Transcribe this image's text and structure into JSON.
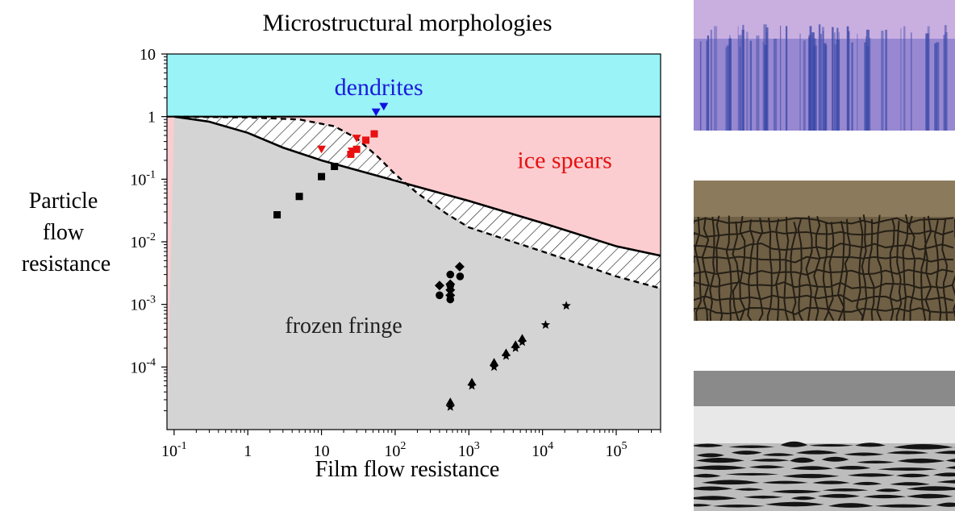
{
  "chart_data": {
    "type": "scatter",
    "title": "Microstructural morphologies",
    "xlabel": "Film flow resistance",
    "ylabel": [
      "Particle",
      "flow",
      "resistance"
    ],
    "x_scale": "log",
    "y_scale": "log",
    "xlim": [
      0.08,
      400000
    ],
    "ylim": [
      1e-05,
      10
    ],
    "x_ticks": [
      {
        "v": 0.1,
        "b": "10",
        "e": "-1"
      },
      {
        "v": 1,
        "b": "1",
        "e": ""
      },
      {
        "v": 10,
        "b": "10",
        "e": ""
      },
      {
        "v": 100,
        "b": "10",
        "e": "2"
      },
      {
        "v": 1000,
        "b": "10",
        "e": "3"
      },
      {
        "v": 10000,
        "b": "10",
        "e": "4"
      },
      {
        "v": 100000,
        "b": "10",
        "e": "5"
      }
    ],
    "y_ticks": [
      {
        "v": 10,
        "b": "10",
        "e": ""
      },
      {
        "v": 1,
        "b": "1",
        "e": ""
      },
      {
        "v": 0.1,
        "b": "10",
        "e": "-1"
      },
      {
        "v": 0.01,
        "b": "10",
        "e": "-2"
      },
      {
        "v": 0.001,
        "b": "10",
        "e": "-3"
      },
      {
        "v": 0.0001,
        "b": "10",
        "e": "-4"
      }
    ],
    "regions": [
      {
        "label": "dendrites",
        "color": "#99f3f7",
        "label_color": "#1a1adc",
        "label_at": [
          60,
          2.2
        ]
      },
      {
        "label": "ice spears",
        "color": "#fbcdd0",
        "label_color": "#e81010",
        "label_at": [
          20000,
          0.15
        ]
      },
      {
        "label": "frozen fringe",
        "color": "#d4d4d4",
        "label_color": "#222222",
        "label_at": [
          20,
          0.00035
        ]
      }
    ],
    "solid_boundary": [
      [
        0.1,
        1
      ],
      [
        0.3,
        0.83
      ],
      [
        1,
        0.55
      ],
      [
        3,
        0.32
      ],
      [
        10,
        0.2
      ],
      [
        30,
        0.14
      ],
      [
        100,
        0.095
      ],
      [
        1000,
        0.045
      ],
      [
        10000,
        0.02
      ],
      [
        100000,
        0.0085
      ],
      [
        400000,
        0.006
      ]
    ],
    "dashed_boundary": [
      [
        0.1,
        1
      ],
      [
        1,
        0.97
      ],
      [
        5,
        0.9
      ],
      [
        15,
        0.7
      ],
      [
        30,
        0.45
      ],
      [
        60,
        0.22
      ],
      [
        100,
        0.12
      ],
      [
        200,
        0.06
      ],
      [
        500,
        0.028
      ],
      [
        1000,
        0.017
      ],
      [
        10000,
        0.007
      ],
      [
        100000,
        0.0028
      ],
      [
        400000,
        0.0018
      ]
    ],
    "series": [
      {
        "marker": "triangle-down",
        "color": "#1010e0",
        "points": [
          [
            55,
            1.18
          ],
          [
            70,
            1.45
          ]
        ]
      },
      {
        "marker": "triangle-down",
        "color": "#e81010",
        "points": [
          [
            10,
            0.3
          ],
          [
            26,
            0.28
          ],
          [
            30,
            0.45
          ]
        ]
      },
      {
        "marker": "square",
        "color": "#e81010",
        "points": [
          [
            25,
            0.25
          ],
          [
            30,
            0.3
          ],
          [
            40,
            0.42
          ],
          [
            52,
            0.53
          ]
        ]
      },
      {
        "marker": "square",
        "color": "#000000",
        "points": [
          [
            2.5,
            0.027
          ],
          [
            5,
            0.053
          ],
          [
            10,
            0.11
          ],
          [
            15,
            0.16
          ]
        ]
      },
      {
        "marker": "diamond",
        "color": "#000000",
        "points": [
          [
            400,
            0.002
          ],
          [
            560,
            0.0021
          ],
          [
            750,
            0.004
          ],
          [
            560,
            0.0017
          ],
          [
            560,
            0.0014
          ]
        ]
      },
      {
        "marker": "circle",
        "color": "#000000",
        "points": [
          [
            400,
            0.0014
          ],
          [
            560,
            0.0012
          ],
          [
            560,
            0.002
          ],
          [
            560,
            0.003
          ],
          [
            760,
            0.0028
          ]
        ]
      },
      {
        "marker": "triangle-up",
        "color": "#000000",
        "points": [
          [
            560,
            2.8e-05
          ],
          [
            1100,
            5.8e-05
          ],
          [
            2200,
            0.00012
          ],
          [
            3200,
            0.00017
          ],
          [
            4300,
            0.00023
          ],
          [
            5300,
            0.00029
          ]
        ]
      },
      {
        "marker": "star",
        "color": "#000000",
        "points": [
          [
            560,
            2.3e-05
          ],
          [
            1100,
            5e-05
          ],
          [
            2200,
            0.0001
          ],
          [
            3200,
            0.00015
          ],
          [
            4300,
            0.0002
          ],
          [
            5300,
            0.00025
          ],
          [
            11000,
            0.00047
          ],
          [
            21000,
            0.00095
          ]
        ]
      }
    ]
  },
  "photos": [
    {
      "name": "dendrites-micrograph",
      "palette": [
        "#c9aee0",
        "#6e6ac4",
        "#3c4aa8"
      ]
    },
    {
      "name": "ice-spears-micrograph",
      "palette": [
        "#8c7a5c",
        "#3e3424",
        "#1c1710"
      ]
    },
    {
      "name": "frozen-fringe-micrograph",
      "palette": [
        "#8a8a8a",
        "#e8e8e8",
        "#141414"
      ]
    }
  ]
}
